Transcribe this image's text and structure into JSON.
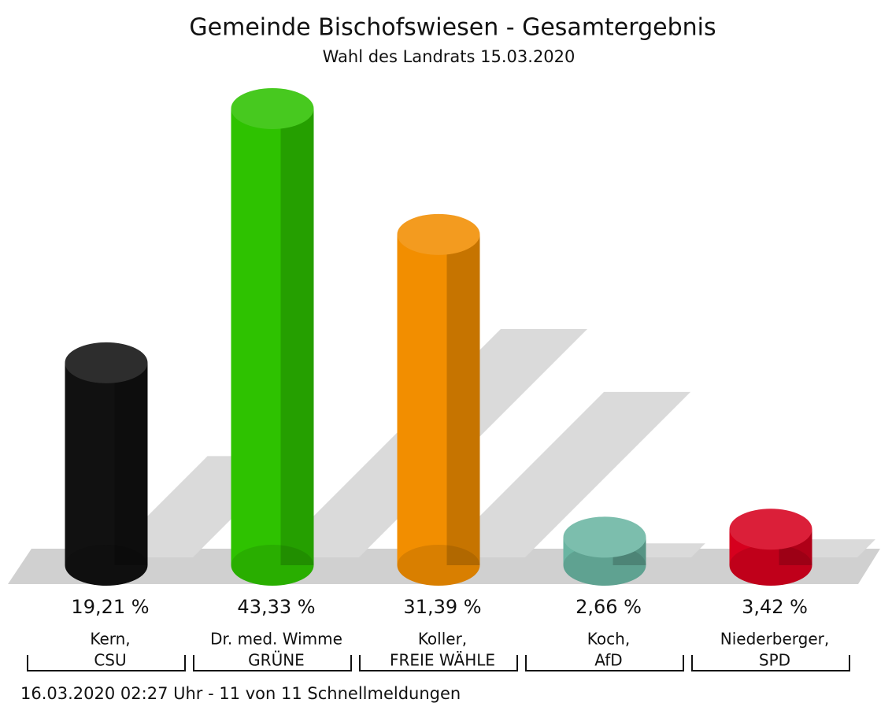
{
  "chart_data": {
    "type": "bar3d",
    "title": "Gemeinde Bischofswiesen - Gesamtergebnis",
    "subtitle": "Wahl des Landrats 15.03.2020",
    "categories": [
      [
        "Kern,",
        "CSU"
      ],
      [
        "Dr. med. Wimme",
        "GRÜNE"
      ],
      [
        "Koller,",
        "FREIE WÄHLE"
      ],
      [
        "Koch,",
        "AfD"
      ],
      [
        "Niederberger,",
        "SPD"
      ]
    ],
    "values": [
      19.21,
      43.33,
      31.39,
      2.66,
      3.42
    ],
    "value_labels": [
      "19,21 %",
      "43,33 %",
      "31,39 %",
      "2,66 %",
      "3,42 %"
    ],
    "colors": [
      "#111111",
      "#2ec200",
      "#f28e00",
      "#6ab5a2",
      "#d6001e"
    ],
    "footnote": "16.03.2020 02:27 Uhr - 11 von 11 Schnellmeldungen"
  }
}
